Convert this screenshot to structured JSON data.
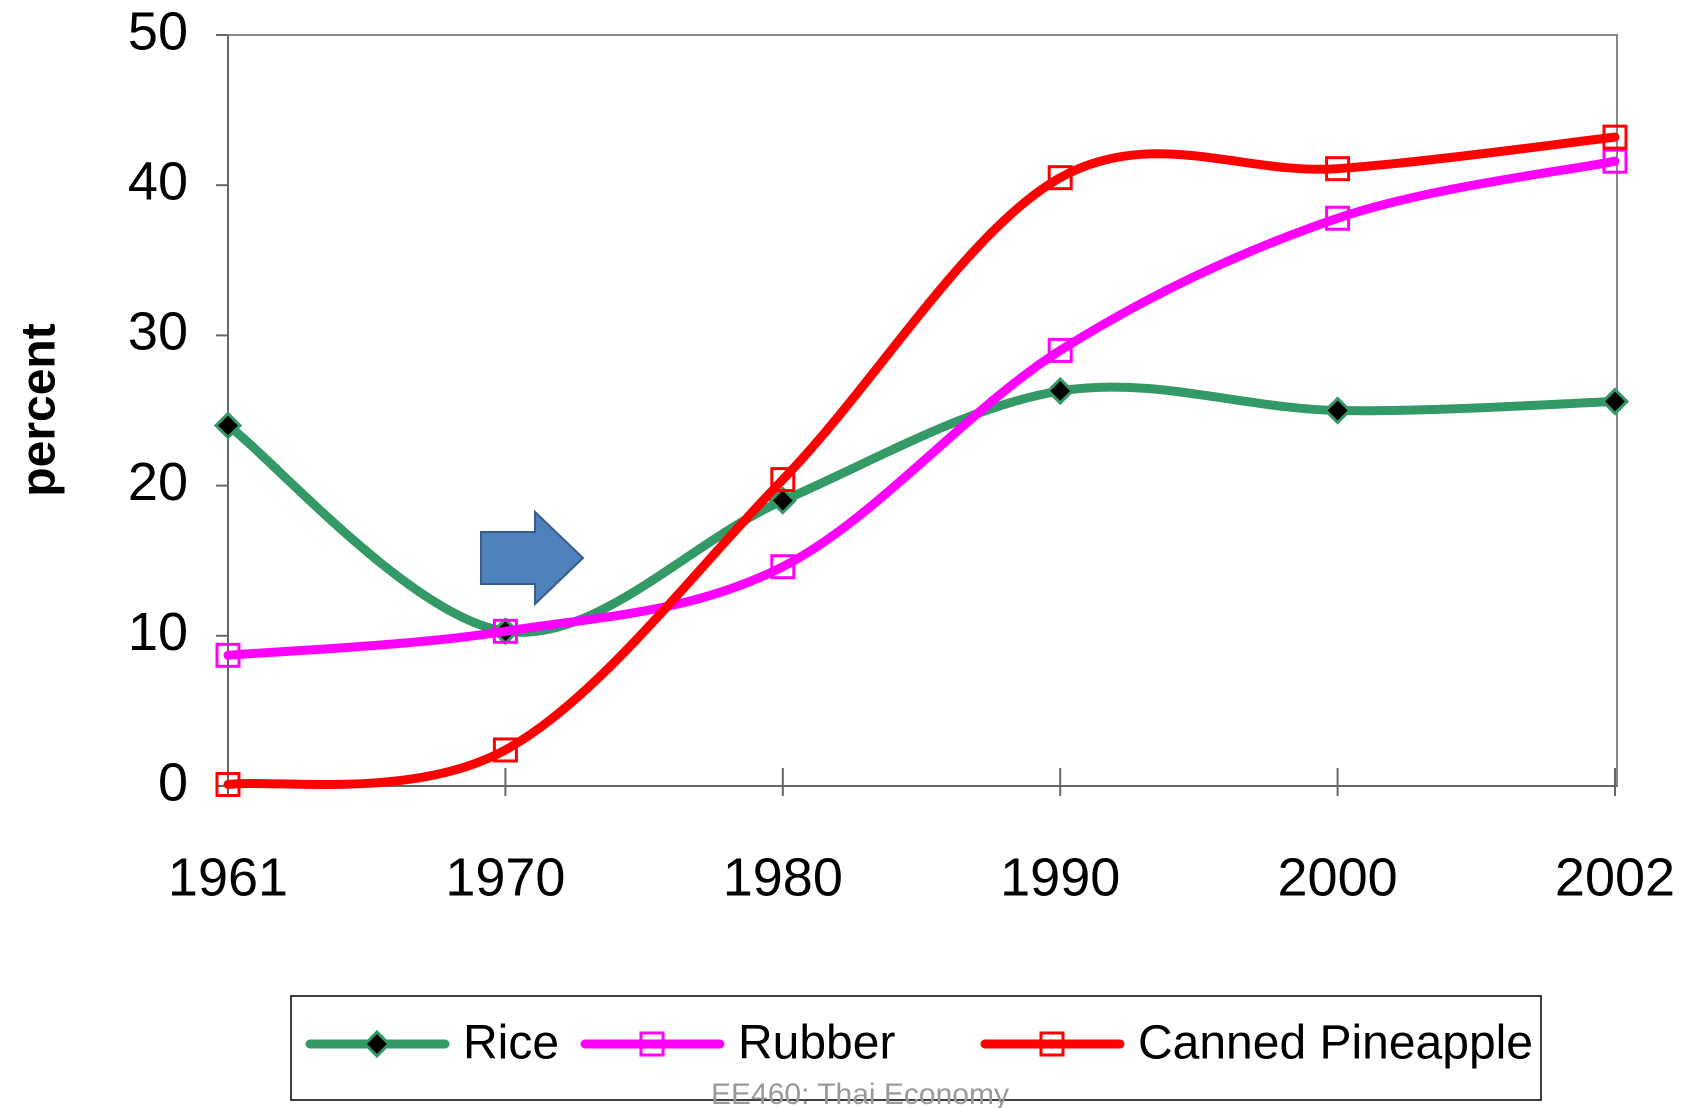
{
  "chart_data": {
    "type": "line",
    "categories": [
      "1961",
      "1970",
      "1980",
      "1990",
      "2000",
      "2002"
    ],
    "series": [
      {
        "name": "Rice",
        "color": "#339966",
        "marker": "diamond",
        "values": [
          24,
          10.3,
          19,
          26.3,
          25,
          25.6
        ]
      },
      {
        "name": "Rubber",
        "color": "#ff00ff",
        "marker": "square",
        "values": [
          8.7,
          10.3,
          14.6,
          29,
          37.8,
          41.6
        ]
      },
      {
        "name": "Canned Pineapple",
        "color": "#ff0000",
        "marker": "square",
        "values": [
          0.1,
          2.4,
          20.4,
          40.5,
          41.1,
          43.2
        ]
      }
    ],
    "ylabel": "percent",
    "ylim": [
      0,
      50
    ],
    "yticks": [
      0,
      10,
      20,
      30,
      40,
      50
    ],
    "grid": false,
    "smooth": true,
    "legend": "bottom",
    "footer": "EE460: Thai Economy"
  }
}
